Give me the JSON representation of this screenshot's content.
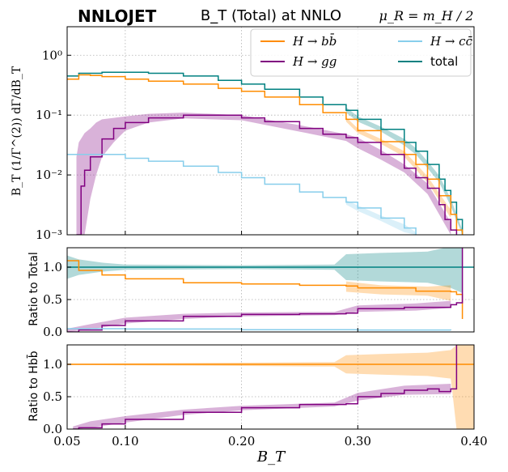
{
  "chart_data": {
    "type": "line",
    "brand": "NNLOJET",
    "title": "B_T (Total) at NNLO",
    "scale_label": "μ_R = m_H / 2",
    "colors": {
      "bb": "#ff8c00",
      "gg": "#800080",
      "cc": "#87ceeb",
      "total": "#008080"
    },
    "legend": [
      {
        "key": "bb",
        "label": "H → bb̄"
      },
      {
        "key": "cc",
        "label": "H → cc̄"
      },
      {
        "key": "gg",
        "label": "H → gg"
      },
      {
        "key": "total",
        "label": "total"
      }
    ],
    "xlabel": "B_T",
    "xlim": [
      0.05,
      0.4
    ],
    "xticks": [
      "0.05",
      "0.10",
      "0.20",
      "0.30",
      "0.40"
    ],
    "xtick_values": [
      0.05,
      0.1,
      0.2,
      0.3,
      0.4
    ],
    "main_panel": {
      "ylabel": "B_T (1/Γ^(2)) dΓ/dB_T",
      "yscale": "log",
      "ylim": [
        0.001,
        3
      ],
      "yticks": [
        {
          "v": 1,
          "label": "10⁰"
        },
        {
          "v": 0.1,
          "label": "10⁻¹"
        },
        {
          "v": 0.01,
          "label": "10⁻²"
        },
        {
          "v": 0.001,
          "label": "10⁻³"
        }
      ],
      "series": [
        {
          "key": "total",
          "points": [
            [
              0.05,
              0.45
            ],
            [
              0.06,
              0.5
            ],
            [
              0.08,
              0.52
            ],
            [
              0.1,
              0.52
            ],
            [
              0.12,
              0.5
            ],
            [
              0.15,
              0.45
            ],
            [
              0.18,
              0.38
            ],
            [
              0.2,
              0.33
            ],
            [
              0.22,
              0.27
            ],
            [
              0.25,
              0.2
            ],
            [
              0.27,
              0.15
            ],
            [
              0.29,
              0.12
            ],
            [
              0.3,
              0.085
            ],
            [
              0.32,
              0.058
            ],
            [
              0.34,
              0.035
            ],
            [
              0.35,
              0.025
            ],
            [
              0.36,
              0.015
            ],
            [
              0.37,
              0.0085
            ],
            [
              0.375,
              0.0055
            ],
            [
              0.38,
              0.0035
            ],
            [
              0.385,
              0.0018
            ],
            [
              0.39,
              0.001
            ]
          ]
        },
        {
          "key": "bb",
          "points": [
            [
              0.05,
              0.4
            ],
            [
              0.06,
              0.47
            ],
            [
              0.07,
              0.46
            ],
            [
              0.08,
              0.44
            ],
            [
              0.1,
              0.4
            ],
            [
              0.12,
              0.37
            ],
            [
              0.15,
              0.33
            ],
            [
              0.18,
              0.28
            ],
            [
              0.2,
              0.25
            ],
            [
              0.22,
              0.2
            ],
            [
              0.25,
              0.15
            ],
            [
              0.27,
              0.11
            ],
            [
              0.29,
              0.085
            ],
            [
              0.3,
              0.055
            ],
            [
              0.32,
              0.036
            ],
            [
              0.34,
              0.022
            ],
            [
              0.35,
              0.015
            ],
            [
              0.36,
              0.0085
            ],
            [
              0.37,
              0.0045
            ],
            [
              0.38,
              0.0022
            ],
            [
              0.385,
              0.0012
            ],
            [
              0.39,
              0.001
            ]
          ]
        },
        {
          "key": "gg",
          "points": [
            [
              0.058,
              0.001
            ],
            [
              0.062,
              0.0065
            ],
            [
              0.065,
              0.012
            ],
            [
              0.07,
              0.02
            ],
            [
              0.08,
              0.04
            ],
            [
              0.09,
              0.06
            ],
            [
              0.1,
              0.075
            ],
            [
              0.12,
              0.09
            ],
            [
              0.15,
              0.1
            ],
            [
              0.18,
              0.1
            ],
            [
              0.2,
              0.09
            ],
            [
              0.22,
              0.078
            ],
            [
              0.25,
              0.06
            ],
            [
              0.27,
              0.048
            ],
            [
              0.29,
              0.042
            ],
            [
              0.3,
              0.035
            ],
            [
              0.32,
              0.022
            ],
            [
              0.34,
              0.013
            ],
            [
              0.35,
              0.009
            ],
            [
              0.36,
              0.006
            ],
            [
              0.37,
              0.0032
            ],
            [
              0.375,
              0.0018
            ],
            [
              0.38,
              0.0012
            ],
            [
              0.385,
              0.001
            ]
          ]
        },
        {
          "key": "cc",
          "points": [
            [
              0.05,
              0.022
            ],
            [
              0.07,
              0.022
            ],
            [
              0.1,
              0.019
            ],
            [
              0.12,
              0.017
            ],
            [
              0.15,
              0.014
            ],
            [
              0.18,
              0.011
            ],
            [
              0.2,
              0.009
            ],
            [
              0.22,
              0.007
            ],
            [
              0.25,
              0.0052
            ],
            [
              0.27,
              0.0042
            ],
            [
              0.29,
              0.0035
            ],
            [
              0.3,
              0.0028
            ],
            [
              0.32,
              0.0019
            ],
            [
              0.34,
              0.0013
            ],
            [
              0.35,
              0.001
            ]
          ]
        }
      ],
      "bands": [
        {
          "key": "gg",
          "points": [
            [
              0.058,
              0.001,
              0.02
            ],
            [
              0.06,
              0.001,
              0.035
            ],
            [
              0.065,
              0.001,
              0.05
            ],
            [
              0.07,
              0.004,
              0.06
            ],
            [
              0.075,
              0.01,
              0.075
            ],
            [
              0.08,
              0.02,
              0.085
            ],
            [
              0.09,
              0.035,
              0.09
            ],
            [
              0.1,
              0.055,
              0.095
            ],
            [
              0.12,
              0.075,
              0.105
            ],
            [
              0.15,
              0.088,
              0.11
            ],
            [
              0.2,
              0.082,
              0.1
            ],
            [
              0.25,
              0.053,
              0.068
            ],
            [
              0.29,
              0.037,
              0.048
            ],
            [
              0.3,
              0.028,
              0.042
            ],
            [
              0.32,
              0.018,
              0.026
            ],
            [
              0.34,
              0.011,
              0.015
            ],
            [
              0.36,
              0.0048,
              0.0072
            ],
            [
              0.38,
              0.0009,
              0.0016
            ]
          ]
        },
        {
          "key": "total",
          "points": [
            [
              0.29,
              0.11,
              0.135
            ],
            [
              0.3,
              0.078,
              0.095
            ],
            [
              0.32,
              0.053,
              0.064
            ],
            [
              0.34,
              0.031,
              0.04
            ],
            [
              0.35,
              0.022,
              0.028
            ],
            [
              0.36,
              0.013,
              0.017
            ],
            [
              0.37,
              0.0075,
              0.0098
            ],
            [
              0.38,
              0.003,
              0.004
            ],
            [
              0.39,
              0.0009,
              0.0012
            ]
          ]
        },
        {
          "key": "bb",
          "points": [
            [
              0.29,
              0.078,
              0.092
            ],
            [
              0.3,
              0.05,
              0.06
            ],
            [
              0.32,
              0.033,
              0.04
            ],
            [
              0.34,
              0.02,
              0.025
            ],
            [
              0.36,
              0.0075,
              0.0095
            ],
            [
              0.38,
              0.0019,
              0.0026
            ]
          ]
        },
        {
          "key": "cc",
          "points": [
            [
              0.29,
              0.0032,
              0.0038
            ],
            [
              0.3,
              0.0025,
              0.0031
            ],
            [
              0.32,
              0.0017,
              0.0021
            ],
            [
              0.34,
              0.0011,
              0.0015
            ],
            [
              0.35,
              0.0009,
              0.0011
            ]
          ]
        }
      ]
    },
    "ratio_total_panel": {
      "ylabel": "Ratio to Total",
      "ylim": [
        0,
        1.3
      ],
      "yticks": [
        "0.0",
        "0.5",
        "1.0"
      ],
      "ytick_values": [
        0,
        0.5,
        1.0
      ],
      "series": [
        {
          "key": "total",
          "points": [
            [
              0.05,
              1.0
            ],
            [
              0.4,
              1.0
            ]
          ]
        },
        {
          "key": "bb",
          "points": [
            [
              0.05,
              1.1
            ],
            [
              0.06,
              0.95
            ],
            [
              0.08,
              0.88
            ],
            [
              0.1,
              0.82
            ],
            [
              0.15,
              0.76
            ],
            [
              0.2,
              0.74
            ],
            [
              0.25,
              0.72
            ],
            [
              0.29,
              0.71
            ],
            [
              0.3,
              0.68
            ],
            [
              0.35,
              0.63
            ],
            [
              0.38,
              0.62
            ],
            [
              0.385,
              0.58
            ],
            [
              0.39,
              0.2
            ]
          ]
        },
        {
          "key": "gg",
          "points": [
            [
              0.05,
              0.0
            ],
            [
              0.06,
              0.03
            ],
            [
              0.08,
              0.1
            ],
            [
              0.1,
              0.17
            ],
            [
              0.15,
              0.24
            ],
            [
              0.2,
              0.27
            ],
            [
              0.25,
              0.28
            ],
            [
              0.29,
              0.29
            ],
            [
              0.3,
              0.36
            ],
            [
              0.34,
              0.38
            ],
            [
              0.38,
              0.42
            ],
            [
              0.385,
              0.45
            ],
            [
              0.39,
              1.3
            ]
          ]
        },
        {
          "key": "cc",
          "points": [
            [
              0.05,
              0.05
            ],
            [
              0.1,
              0.045
            ],
            [
              0.2,
              0.035
            ],
            [
              0.3,
              0.03
            ],
            [
              0.38,
              0.025
            ]
          ]
        }
      ],
      "bands": [
        {
          "key": "total",
          "points": [
            [
              0.05,
              0.82,
              1.18
            ],
            [
              0.06,
              0.88,
              1.12
            ],
            [
              0.08,
              0.93,
              1.07
            ],
            [
              0.1,
              0.96,
              1.04
            ],
            [
              0.2,
              0.97,
              1.03
            ],
            [
              0.28,
              0.96,
              1.04
            ],
            [
              0.29,
              0.8,
              1.2
            ],
            [
              0.32,
              0.78,
              1.22
            ],
            [
              0.36,
              0.76,
              1.24
            ],
            [
              0.38,
              0.68,
              1.32
            ],
            [
              0.39,
              0.6,
              1.3
            ]
          ]
        },
        {
          "key": "bb",
          "points": [
            [
              0.29,
              0.62,
              0.78
            ],
            [
              0.32,
              0.58,
              0.72
            ],
            [
              0.36,
              0.56,
              0.7
            ],
            [
              0.38,
              0.48,
              0.72
            ]
          ]
        },
        {
          "key": "gg",
          "points": [
            [
              0.05,
              0.0,
              0.05
            ],
            [
              0.07,
              0.04,
              0.12
            ],
            [
              0.1,
              0.13,
              0.22
            ],
            [
              0.15,
              0.2,
              0.28
            ],
            [
              0.2,
              0.24,
              0.3
            ],
            [
              0.28,
              0.26,
              0.31
            ],
            [
              0.3,
              0.31,
              0.41
            ],
            [
              0.35,
              0.33,
              0.44
            ],
            [
              0.38,
              0.37,
              0.48
            ]
          ]
        }
      ]
    },
    "ratio_bb_panel": {
      "ylabel": "Ratio to Hbb̄",
      "ylim": [
        0,
        1.3
      ],
      "yticks": [
        "0.0",
        "0.5",
        "1.0"
      ],
      "ytick_values": [
        0,
        0.5,
        1.0
      ],
      "series": [
        {
          "key": "bb",
          "points": [
            [
              0.05,
              1.0
            ],
            [
              0.4,
              1.0
            ]
          ]
        },
        {
          "key": "gg",
          "points": [
            [
              0.055,
              0.0
            ],
            [
              0.06,
              0.02
            ],
            [
              0.08,
              0.08
            ],
            [
              0.1,
              0.15
            ],
            [
              0.15,
              0.26
            ],
            [
              0.2,
              0.33
            ],
            [
              0.25,
              0.38
            ],
            [
              0.29,
              0.39
            ],
            [
              0.3,
              0.5
            ],
            [
              0.32,
              0.55
            ],
            [
              0.34,
              0.6
            ],
            [
              0.36,
              0.62
            ],
            [
              0.37,
              0.58
            ],
            [
              0.38,
              0.62
            ],
            [
              0.385,
              1.3
            ]
          ]
        }
      ],
      "bands": [
        {
          "key": "bb",
          "points": [
            [
              0.05,
              0.99,
              1.01
            ],
            [
              0.1,
              0.985,
              1.015
            ],
            [
              0.2,
              0.975,
              1.025
            ],
            [
              0.28,
              0.965,
              1.035
            ],
            [
              0.29,
              0.86,
              1.14
            ],
            [
              0.32,
              0.84,
              1.16
            ],
            [
              0.36,
              0.82,
              1.18
            ],
            [
              0.38,
              0.78,
              1.22
            ],
            [
              0.385,
              0.0,
              1.3
            ],
            [
              0.4,
              0.0,
              1.3
            ]
          ]
        },
        {
          "key": "gg",
          "points": [
            [
              0.055,
              0.0,
              0.04
            ],
            [
              0.07,
              0.02,
              0.12
            ],
            [
              0.1,
              0.1,
              0.2
            ],
            [
              0.15,
              0.22,
              0.3
            ],
            [
              0.2,
              0.29,
              0.36
            ],
            [
              0.28,
              0.35,
              0.41
            ],
            [
              0.3,
              0.44,
              0.56
            ],
            [
              0.34,
              0.53,
              0.67
            ],
            [
              0.38,
              0.54,
              0.7
            ]
          ]
        }
      ]
    }
  }
}
